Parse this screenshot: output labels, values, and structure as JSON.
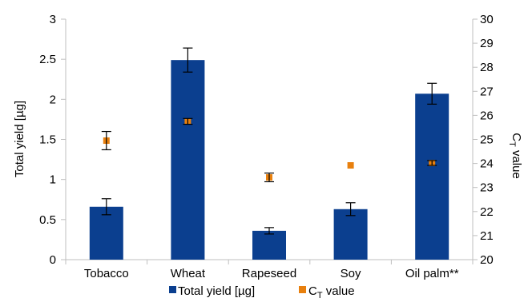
{
  "chart_data": {
    "type": "bar",
    "categories": [
      "Tobacco",
      "Wheat",
      "Rapeseed",
      "Soy",
      "Oil palm**"
    ],
    "series": [
      {
        "name": "Total yield [µg]",
        "type": "bar",
        "axis": "left",
        "values": [
          0.66,
          2.49,
          0.36,
          0.63,
          2.07
        ],
        "error": [
          0.1,
          0.15,
          0.04,
          0.08,
          0.13
        ],
        "color": "#0b3f8f"
      },
      {
        "name": "CT value",
        "name_main": "C",
        "name_sub": "T",
        "name_rest": " value",
        "type": "scatter",
        "axis": "right",
        "values": [
          24.95,
          25.75,
          23.42,
          23.92,
          24.02
        ],
        "error": [
          0.38,
          0.12,
          0.18,
          0.0,
          0.1
        ],
        "color": "#e8800e"
      }
    ],
    "ylabel": "Total yield [µg]",
    "y2label_main": "C",
    "y2label_sub": "T",
    "y2label_rest": " value",
    "ylim": [
      0,
      3
    ],
    "yticks": [
      "0",
      "0.5",
      "1",
      "1.5",
      "2",
      "2.5",
      "3"
    ],
    "y2lim": [
      20,
      30
    ],
    "y2ticks": [
      "20",
      "21",
      "22",
      "23",
      "24",
      "25",
      "26",
      "27",
      "28",
      "29",
      "30"
    ],
    "grid": false,
    "legend": "bottom"
  }
}
